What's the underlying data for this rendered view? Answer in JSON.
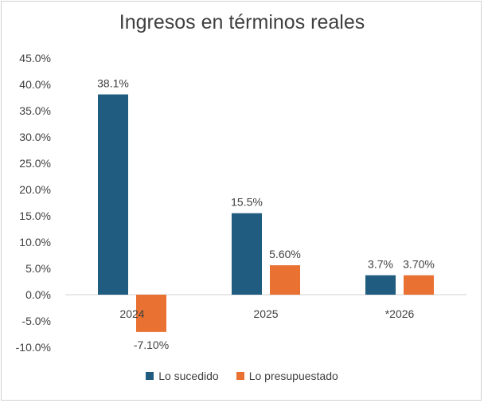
{
  "chart_data": {
    "type": "bar",
    "title": "Ingresos en términos reales",
    "xlabel": "",
    "ylabel": "",
    "categories": [
      "2024",
      "2025",
      "*2026"
    ],
    "ylim": [
      -10,
      45
    ],
    "ytick_step": 5,
    "ytick_labels": [
      "-10.0%",
      "-5.0%",
      "0.0%",
      "5.0%",
      "10.0%",
      "15.0%",
      "20.0%",
      "25.0%",
      "30.0%",
      "35.0%",
      "40.0%",
      "45.0%"
    ],
    "grid": false,
    "legend_position": "bottom",
    "series": [
      {
        "name": "Lo sucedido",
        "color": "#1f5c80",
        "values": [
          38.1,
          15.5,
          3.7
        ],
        "labels": [
          "38.1%",
          "15.5%",
          "3.7%"
        ]
      },
      {
        "name": "Lo presupuestado",
        "color": "#e97132",
        "values": [
          -7.1,
          5.6,
          3.7
        ],
        "labels": [
          "-7.10%",
          "5.60%",
          "3.70%"
        ]
      }
    ]
  }
}
